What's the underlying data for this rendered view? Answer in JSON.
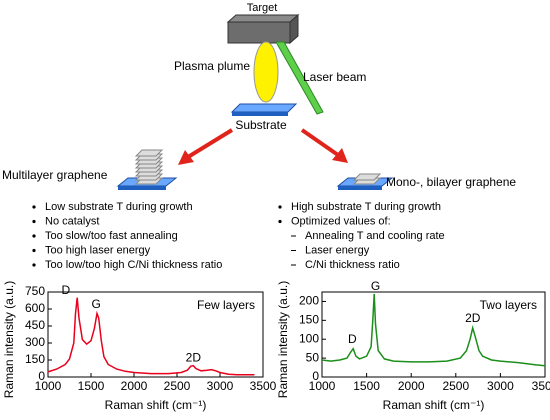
{
  "diagram": {
    "target": "Target",
    "plume": "Plasma plume",
    "laser": "Laser beam",
    "substrate": "Substrate"
  },
  "left": {
    "title": "Multilayer graphene",
    "bullets": [
      "Low substrate T during growth",
      "No catalyst",
      "Too slow/too fast annealing",
      "Too high laser energy",
      "Too low/too high C/Ni thickness ratio"
    ]
  },
  "right": {
    "title": "Mono-, bilayer graphene",
    "bullets": [
      "High substrate T during growth",
      "Optimized values of:"
    ],
    "sub_bullets": [
      "Annealing T and cooling rate",
      "Laser energy",
      "C/Ni thickness ratio"
    ]
  },
  "chart_data": [
    {
      "type": "line",
      "annotation": "Few layers",
      "peak_labels": [
        "D",
        "G",
        "2D"
      ],
      "x_label": "Raman shift (cm⁻¹)",
      "y_label": "Raman intensity (a.u.)",
      "color": "#e8001c",
      "x": [
        1000,
        1100,
        1200,
        1250,
        1300,
        1320,
        1340,
        1360,
        1400,
        1450,
        1500,
        1540,
        1570,
        1590,
        1620,
        1650,
        1700,
        1800,
        1900,
        2000,
        2200,
        2400,
        2550,
        2620,
        2660,
        2690,
        2720,
        2780,
        2850,
        2900,
        2950,
        3000,
        3100,
        3200,
        3300,
        3400
      ],
      "values": [
        45,
        70,
        110,
        160,
        300,
        560,
        700,
        520,
        330,
        290,
        320,
        430,
        560,
        520,
        320,
        180,
        110,
        70,
        50,
        40,
        30,
        30,
        40,
        60,
        95,
        100,
        75,
        55,
        60,
        65,
        55,
        40,
        25,
        20,
        20,
        20
      ],
      "xlim": [
        1000,
        3500
      ],
      "xticks": [
        1000,
        1500,
        2000,
        2500,
        3000,
        3500
      ],
      "ylim": [
        0,
        750
      ],
      "yticks": [
        0,
        150,
        300,
        450,
        600,
        750
      ]
    },
    {
      "type": "line",
      "annotation": "Two layers",
      "peak_labels": [
        "D",
        "G",
        "2D"
      ],
      "x_label": "Raman shift (cm⁻¹)",
      "y_label": "Raman intensity (a.u.)",
      "color": "#1a8f1a",
      "x": [
        1000,
        1100,
        1200,
        1280,
        1320,
        1350,
        1380,
        1420,
        1500,
        1550,
        1570,
        1585,
        1600,
        1630,
        1700,
        1800,
        2000,
        2200,
        2400,
        2550,
        2620,
        2660,
        2690,
        2720,
        2760,
        2800,
        2900,
        3000,
        3200,
        3400,
        3500
      ],
      "values": [
        45,
        42,
        45,
        50,
        65,
        75,
        55,
        48,
        55,
        80,
        150,
        220,
        140,
        70,
        48,
        42,
        40,
        40,
        42,
        50,
        70,
        100,
        130,
        105,
        70,
        55,
        45,
        42,
        38,
        32,
        30
      ],
      "xlim": [
        1000,
        3500
      ],
      "xticks": [
        1000,
        1500,
        2000,
        2500,
        3000,
        3500
      ],
      "ylim": [
        0,
        225
      ],
      "yticks": [
        0,
        50,
        100,
        150,
        200
      ]
    }
  ]
}
